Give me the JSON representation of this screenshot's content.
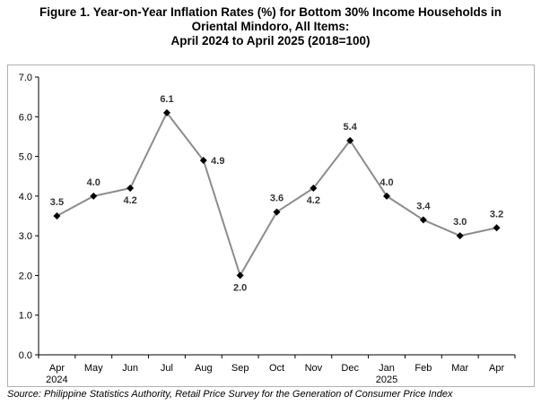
{
  "title": {
    "line1": "Figure 1. Year-on-Year Inflation Rates (%) for Bottom 30% Income Households in",
    "line2": "Oriental Mindoro, All Items:",
    "line3": "April 2024 to April 2025 (2018=100)"
  },
  "source": "Source: Philippine Statistics Authority, Retail Price Survey for the Generation of Consumer Price Index",
  "chart_data": {
    "type": "line",
    "categories": [
      "Apr",
      "May",
      "Jun",
      "Jul",
      "Aug",
      "Sep",
      "Oct",
      "Nov",
      "Dec",
      "Jan",
      "Feb",
      "Mar",
      "Apr"
    ],
    "year_labels": {
      "0": "2024",
      "9": "2025"
    },
    "series": [
      {
        "values": [
          3.5,
          4.0,
          4.2,
          6.1,
          4.9,
          2.0,
          3.6,
          4.2,
          5.4,
          4.0,
          3.4,
          3.0,
          3.2
        ]
      }
    ],
    "data_labels": [
      "3.5",
      "4.0",
      "4.2",
      "6.1",
      "4.9",
      "2.0",
      "3.6",
      "4.2",
      "5.4",
      "4.0",
      "3.4",
      "3.0",
      "3.2"
    ],
    "ylim": [
      0,
      7
    ],
    "yticks": [
      "0.0",
      "1.0",
      "2.0",
      "3.0",
      "4.0",
      "5.0",
      "6.0",
      "7.0"
    ],
    "line_color": "#8c8c8c",
    "marker_color": "#000000",
    "grid": false,
    "legend": "none"
  }
}
